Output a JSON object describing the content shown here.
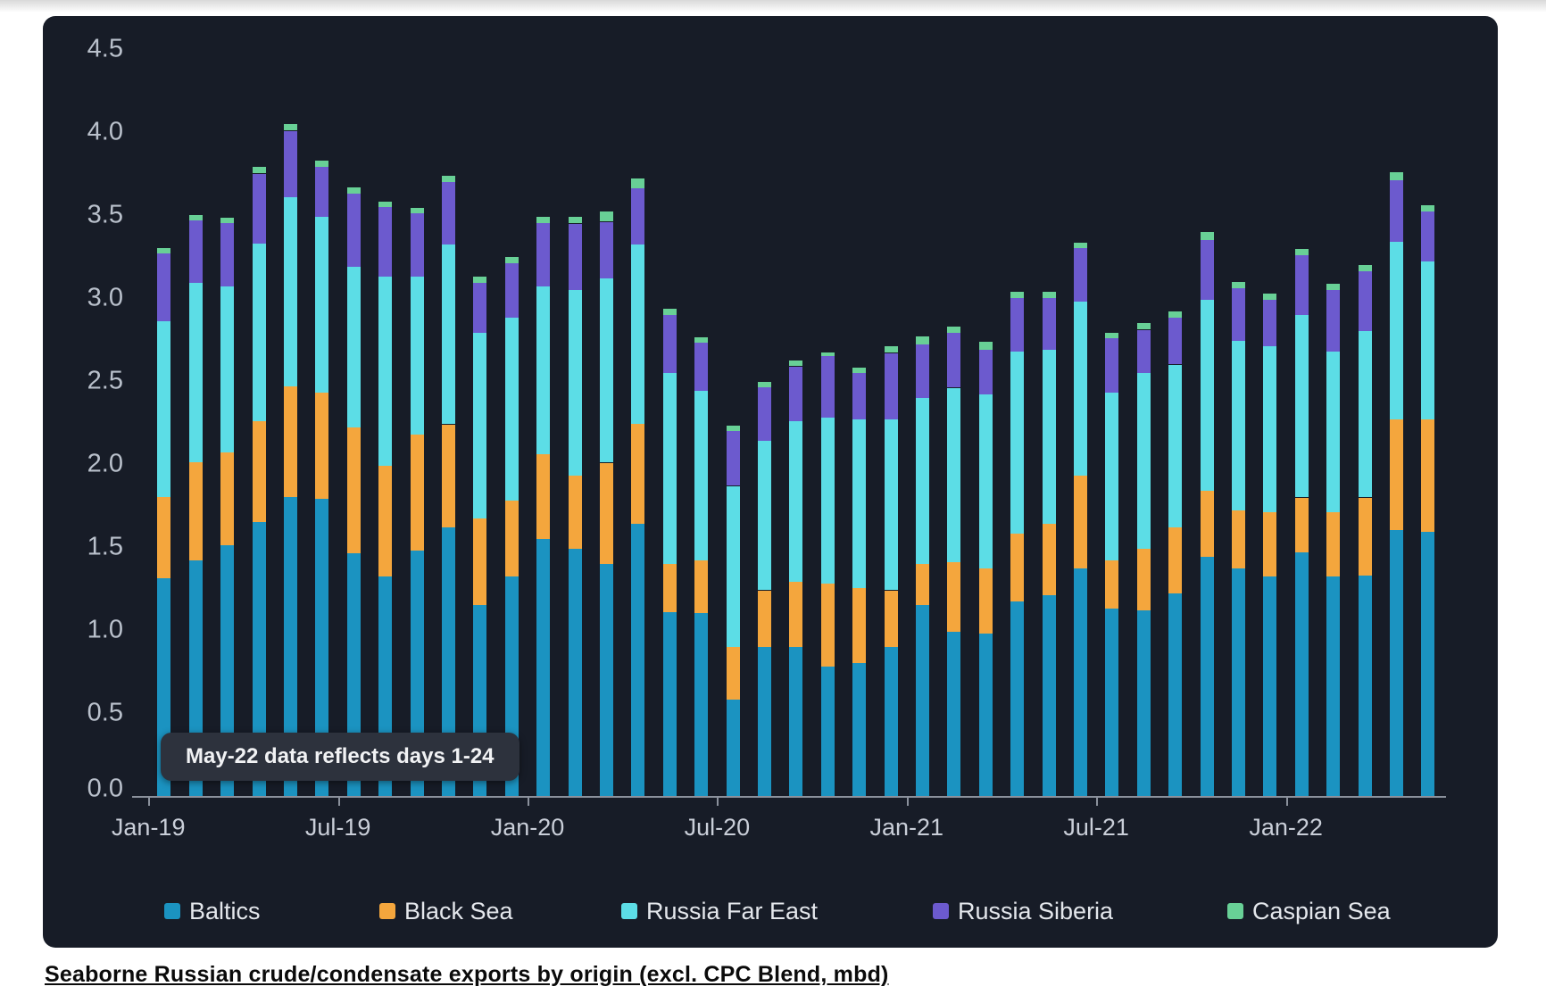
{
  "page": {
    "background": "#ffffff"
  },
  "card": {
    "background": "#171c27"
  },
  "annotation": {
    "text": "May-22 data reflects days 1-24"
  },
  "caption": {
    "text": "Seaborne Russian crude/condensate exports by origin (excl. CPC Blend, mbd)"
  },
  "colors": {
    "axis_text": "#b9c0cb",
    "x_axis_text": "#c9ced8",
    "axis_line": "#8b919c",
    "tooltip_bg": "#2d323d",
    "tooltip_text": "#f1f2f4",
    "legend_text": "#e4e7ec"
  },
  "chart_data": {
    "type": "bar",
    "stacked": true,
    "title": "",
    "xlabel": "",
    "ylabel": "",
    "grid": false,
    "legend_position": "bottom",
    "ylim": [
      0,
      4.5
    ],
    "y_ticks": [
      "0.0",
      "0.5",
      "1.0",
      "1.5",
      "2.0",
      "2.5",
      "3.0",
      "3.5",
      "4.0",
      "4.5"
    ],
    "x_tick_labels": [
      {
        "label": "Jan-19",
        "index": 0
      },
      {
        "label": "Jul-19",
        "index": 6
      },
      {
        "label": "Jan-20",
        "index": 12
      },
      {
        "label": "Jul-20",
        "index": 18
      },
      {
        "label": "Jan-21",
        "index": 24
      },
      {
        "label": "Jul-21",
        "index": 30
      },
      {
        "label": "Jan-22",
        "index": 36
      }
    ],
    "categories": [
      "Jan-19",
      "Feb-19",
      "Mar-19",
      "Apr-19",
      "May-19",
      "Jun-19",
      "Jul-19",
      "Aug-19",
      "Sep-19",
      "Oct-19",
      "Nov-19",
      "Dec-19",
      "Jan-20",
      "Feb-20",
      "Mar-20",
      "Apr-20",
      "May-20",
      "Jun-20",
      "Jul-20",
      "Aug-20",
      "Sep-20",
      "Oct-20",
      "Nov-20",
      "Dec-20",
      "Jan-21",
      "Feb-21",
      "Mar-21",
      "Apr-21",
      "May-21",
      "Jun-21",
      "Jul-21",
      "Aug-21",
      "Sep-21",
      "Oct-21",
      "Nov-21",
      "Dec-21",
      "Jan-22",
      "Feb-22",
      "Mar-22",
      "Apr-22",
      "May-22"
    ],
    "series": [
      {
        "name": "Baltics",
        "color": "#1b93c1",
        "values": [
          1.31,
          1.42,
          1.51,
          1.65,
          1.8,
          1.79,
          1.46,
          1.32,
          1.48,
          1.62,
          1.15,
          1.32,
          1.55,
          1.49,
          1.4,
          1.64,
          1.11,
          1.1,
          0.58,
          0.9,
          0.9,
          0.78,
          0.8,
          0.9,
          1.15,
          0.99,
          0.98,
          1.17,
          1.21,
          1.37,
          1.13,
          1.12,
          1.22,
          1.44,
          1.37,
          1.32,
          1.47,
          1.32,
          1.33,
          1.6,
          1.59
        ]
      },
      {
        "name": "Black Sea",
        "color": "#f4a63d",
        "values": [
          0.49,
          0.59,
          0.56,
          0.61,
          0.67,
          0.64,
          0.76,
          0.67,
          0.7,
          0.62,
          0.52,
          0.46,
          0.51,
          0.44,
          0.61,
          0.6,
          0.29,
          0.32,
          0.32,
          0.34,
          0.39,
          0.5,
          0.45,
          0.34,
          0.25,
          0.42,
          0.39,
          0.41,
          0.43,
          0.56,
          0.29,
          0.37,
          0.4,
          0.4,
          0.35,
          0.39,
          0.33,
          0.39,
          0.47,
          0.67,
          0.68
        ]
      },
      {
        "name": "Russia Far East",
        "color": "#5cdde6",
        "values": [
          1.06,
          1.08,
          1.0,
          1.07,
          1.14,
          1.06,
          0.97,
          1.14,
          0.95,
          1.08,
          1.12,
          1.1,
          1.01,
          1.12,
          1.11,
          1.08,
          1.15,
          1.02,
          0.97,
          0.9,
          0.97,
          1.0,
          1.02,
          1.03,
          1.0,
          1.05,
          1.05,
          1.1,
          1.05,
          1.05,
          1.01,
          1.06,
          0.98,
          1.15,
          1.02,
          1.0,
          1.1,
          0.97,
          1.0,
          1.07,
          0.95
        ]
      },
      {
        "name": "Russia Siberia",
        "color": "#6c5ace",
        "values": [
          0.41,
          0.38,
          0.38,
          0.42,
          0.4,
          0.3,
          0.44,
          0.42,
          0.38,
          0.38,
          0.3,
          0.33,
          0.38,
          0.4,
          0.34,
          0.34,
          0.35,
          0.29,
          0.33,
          0.32,
          0.33,
          0.37,
          0.28,
          0.4,
          0.32,
          0.33,
          0.27,
          0.32,
          0.31,
          0.32,
          0.33,
          0.26,
          0.28,
          0.36,
          0.32,
          0.28,
          0.36,
          0.37,
          0.36,
          0.37,
          0.3
        ]
      },
      {
        "name": "Caspian Sea",
        "color": "#68d096",
        "values": [
          0.03,
          0.03,
          0.03,
          0.04,
          0.04,
          0.04,
          0.04,
          0.03,
          0.03,
          0.04,
          0.04,
          0.04,
          0.04,
          0.04,
          0.06,
          0.06,
          0.04,
          0.03,
          0.03,
          0.03,
          0.03,
          0.02,
          0.03,
          0.04,
          0.05,
          0.04,
          0.05,
          0.04,
          0.04,
          0.03,
          0.03,
          0.04,
          0.04,
          0.05,
          0.04,
          0.04,
          0.04,
          0.04,
          0.04,
          0.05,
          0.04
        ]
      }
    ],
    "totals": [
      3.3,
      3.5,
      3.48,
      3.79,
      4.05,
      3.83,
      3.67,
      3.58,
      3.54,
      3.74,
      3.13,
      3.25,
      3.49,
      3.49,
      3.52,
      3.72,
      2.94,
      2.76,
      2.23,
      2.49,
      2.62,
      2.67,
      2.58,
      2.71,
      2.77,
      2.83,
      2.74,
      3.04,
      3.04,
      3.33,
      2.79,
      2.85,
      2.92,
      3.4,
      3.1,
      3.03,
      3.3,
      3.09,
      3.2,
      3.76,
      3.56
    ]
  },
  "legend": {
    "items": [
      "Baltics",
      "Black Sea",
      "Russia Far East",
      "Russia Siberia",
      "Caspian Sea"
    ]
  }
}
